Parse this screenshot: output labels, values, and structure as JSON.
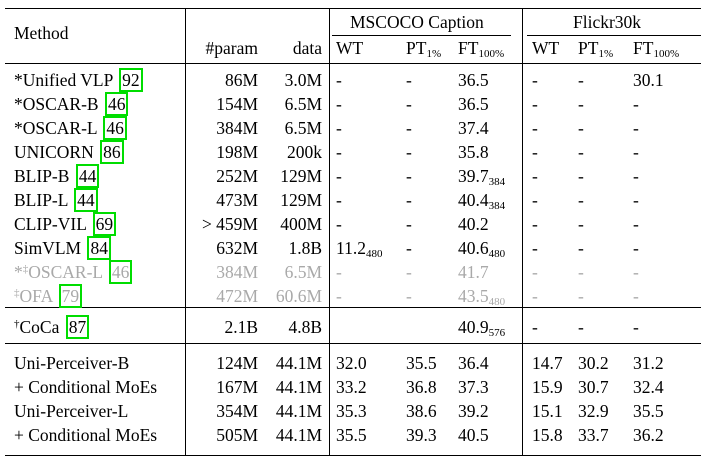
{
  "header": {
    "method": "Method",
    "param": "#param",
    "data": "data",
    "group_mscoco": "MSCOCO Caption",
    "group_flickr": "Flickr30k",
    "wt": "WT",
    "pt": "PT",
    "pt_sub": "1%",
    "ft": "FT",
    "ft_sub": "100%"
  },
  "rows": [
    {
      "prefix": "*",
      "name": "Unified VLP",
      "ref": "92",
      "param": "86M",
      "data": "3.0M",
      "coco": [
        "-",
        "-",
        "36.5",
        ""
      ],
      "flickr": [
        "-",
        "-",
        "30.1"
      ],
      "gray": false
    },
    {
      "prefix": "*",
      "name": "OSCAR-B",
      "ref": "46",
      "param": "154M",
      "data": "6.5M",
      "coco": [
        "-",
        "-",
        "36.5",
        ""
      ],
      "flickr": [
        "-",
        "-",
        "-"
      ],
      "gray": false
    },
    {
      "prefix": "*",
      "name": "OSCAR-L",
      "ref": "46",
      "param": "384M",
      "data": "6.5M",
      "coco": [
        "-",
        "-",
        "37.4",
        ""
      ],
      "flickr": [
        "-",
        "-",
        "-"
      ],
      "gray": false
    },
    {
      "prefix": "",
      "name": "UNICORN",
      "ref": "86",
      "param": "198M",
      "data": "200k",
      "coco": [
        "-",
        "-",
        "35.8",
        ""
      ],
      "flickr": [
        "-",
        "-",
        "-"
      ],
      "gray": false
    },
    {
      "prefix": "",
      "name": "BLIP-B",
      "ref": "44",
      "param": "252M",
      "data": "129M",
      "coco": [
        "-",
        "-",
        "39.7",
        "384"
      ],
      "flickr": [
        "-",
        "-",
        "-"
      ],
      "gray": false
    },
    {
      "prefix": "",
      "name": "BLIP-L",
      "ref": "44",
      "param": "473M",
      "data": "129M",
      "coco": [
        "-",
        "-",
        "40.4",
        "384"
      ],
      "flickr": [
        "-",
        "-",
        "-"
      ],
      "gray": false
    },
    {
      "prefix": "",
      "name": "CLIP-VIL",
      "ref": "69",
      "param": "> 459M",
      "data": "400M",
      "coco": [
        "-",
        "-",
        "40.2",
        ""
      ],
      "flickr": [
        "-",
        "-",
        "-"
      ],
      "gray": false
    },
    {
      "prefix": "",
      "name": "SimVLM",
      "ref": "84",
      "param": "632M",
      "data": "1.8B",
      "coco": [
        "11.2",
        "-",
        "40.6",
        "480"
      ],
      "wt_sub": "480",
      "flickr": [
        "-",
        "-",
        "-"
      ],
      "gray": false
    },
    {
      "prefix": "*‡",
      "name": "OSCAR-L",
      "ref": "46",
      "param": "384M",
      "data": "6.5M",
      "coco": [
        "-",
        "-",
        "41.7",
        ""
      ],
      "flickr": [
        "-",
        "-",
        "-"
      ],
      "gray": true
    },
    {
      "prefix": "‡",
      "name": "OFA",
      "ref": "79",
      "param": "472M",
      "data": "60.6M",
      "coco": [
        "-",
        "-",
        "43.5",
        "480"
      ],
      "flickr": [
        "-",
        "-",
        "-"
      ],
      "gray": true
    }
  ],
  "coca": {
    "prefix": "†",
    "name": "CoCa",
    "ref": "87",
    "param": "2.1B",
    "data": "4.8B",
    "coco": [
      "",
      "",
      "40.9",
      "576"
    ],
    "flickr": [
      "-",
      "-",
      "-"
    ]
  },
  "ours": [
    {
      "name": "Uni-Perceiver-B",
      "param": "124M",
      "data": "44.1M",
      "coco": [
        "32.0",
        "35.5",
        "36.4"
      ],
      "flickr": [
        "14.7",
        "30.2",
        "31.2"
      ]
    },
    {
      "name": "+ Conditional MoEs",
      "param": "167M",
      "data": "44.1M",
      "coco": [
        "33.2",
        "36.8",
        "37.3"
      ],
      "flickr": [
        "15.9",
        "30.7",
        "32.4"
      ]
    },
    {
      "name": "Uni-Perceiver-L",
      "param": "354M",
      "data": "44.1M",
      "coco": [
        "35.3",
        "38.6",
        "39.2"
      ],
      "flickr": [
        "15.1",
        "32.9",
        "35.5"
      ]
    },
    {
      "name": "+ Conditional MoEs",
      "param": "505M",
      "data": "44.1M",
      "coco": [
        "35.5",
        "39.3",
        "40.5"
      ],
      "flickr": [
        "15.8",
        "33.7",
        "36.2"
      ]
    }
  ]
}
